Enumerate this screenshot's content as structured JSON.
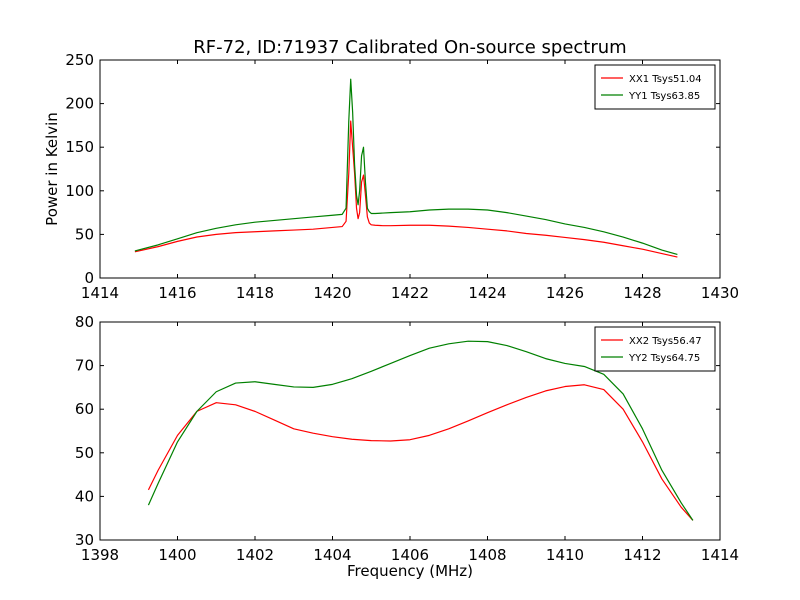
{
  "title": "RF-72, ID:71937 Calibrated On-source spectrum",
  "chart_data": [
    {
      "type": "line",
      "title": "RF-72, ID:71937 Calibrated On-source spectrum",
      "xlabel": "",
      "ylabel": "Power in Kelvin",
      "xlim": [
        1414,
        1430
      ],
      "ylim": [
        0,
        250
      ],
      "xticks": [
        1414,
        1416,
        1418,
        1420,
        1422,
        1424,
        1426,
        1428,
        1430
      ],
      "yticks": [
        0,
        50,
        100,
        150,
        200,
        250
      ],
      "grid": false,
      "legend_position": "top-right",
      "series": [
        {
          "name": "XX1 Tsys51.04",
          "color": "#ff0000",
          "x": [
            1414.9,
            1415.5,
            1416.0,
            1416.5,
            1417.0,
            1417.5,
            1418.0,
            1418.5,
            1419.0,
            1419.5,
            1420.0,
            1420.25,
            1420.35,
            1420.42,
            1420.47,
            1420.52,
            1420.57,
            1420.62,
            1420.66,
            1420.7,
            1420.75,
            1420.8,
            1420.85,
            1420.9,
            1420.95,
            1421.0,
            1421.1,
            1421.3,
            1421.5,
            1422.0,
            1422.5,
            1423.0,
            1423.5,
            1424.0,
            1424.5,
            1425.0,
            1425.5,
            1426.0,
            1426.5,
            1427.0,
            1427.5,
            1428.0,
            1428.5,
            1428.9
          ],
          "y": [
            30,
            36,
            42,
            47,
            50,
            52,
            53,
            54,
            55,
            56,
            58,
            59,
            65,
            120,
            180,
            150,
            120,
            80,
            68,
            75,
            110,
            118,
            95,
            70,
            63,
            61,
            60.5,
            60,
            60,
            60.5,
            60.5,
            59.5,
            58,
            56,
            54,
            51,
            49,
            46.5,
            44,
            41,
            37,
            33,
            28,
            24
          ]
        },
        {
          "name": "YY1 Tsys63.85",
          "color": "#008000",
          "x": [
            1414.9,
            1415.5,
            1416.0,
            1416.5,
            1417.0,
            1417.5,
            1418.0,
            1418.5,
            1419.0,
            1419.5,
            1420.0,
            1420.25,
            1420.35,
            1420.42,
            1420.47,
            1420.52,
            1420.57,
            1420.62,
            1420.66,
            1420.7,
            1420.75,
            1420.8,
            1420.85,
            1420.9,
            1420.95,
            1421.0,
            1421.1,
            1421.3,
            1421.5,
            1422.0,
            1422.5,
            1423.0,
            1423.5,
            1424.0,
            1424.5,
            1425.0,
            1425.5,
            1426.0,
            1426.5,
            1427.0,
            1427.5,
            1428.0,
            1428.5,
            1428.9
          ],
          "y": [
            31,
            38,
            45,
            52,
            57,
            61,
            64,
            66,
            68,
            70,
            72,
            73,
            80,
            180,
            228,
            190,
            130,
            95,
            84,
            100,
            140,
            150,
            110,
            80,
            76,
            74,
            74,
            74.5,
            75,
            76,
            78,
            79,
            79,
            78,
            75,
            71,
            67,
            62,
            58,
            53,
            47,
            40,
            32,
            27
          ]
        }
      ]
    },
    {
      "type": "line",
      "title": "",
      "xlabel": "Frequency (MHz)",
      "ylabel": "",
      "xlim": [
        1398,
        1414
      ],
      "ylim": [
        30,
        80
      ],
      "xticks": [
        1398,
        1400,
        1402,
        1404,
        1406,
        1408,
        1410,
        1412,
        1414
      ],
      "yticks": [
        30,
        40,
        50,
        60,
        70,
        80
      ],
      "grid": false,
      "legend_position": "top-right",
      "series": [
        {
          "name": "XX2 Tsys56.47",
          "color": "#ff0000",
          "x": [
            1399.25,
            1399.5,
            1400.0,
            1400.5,
            1401.0,
            1401.5,
            1402.0,
            1402.5,
            1403.0,
            1403.5,
            1404.0,
            1404.5,
            1405.0,
            1405.5,
            1406.0,
            1406.5,
            1407.0,
            1407.5,
            1408.0,
            1408.5,
            1409.0,
            1409.5,
            1410.0,
            1410.5,
            1411.0,
            1411.5,
            1412.0,
            1412.5,
            1413.0,
            1413.3
          ],
          "y": [
            41.5,
            46,
            54,
            59.5,
            61.5,
            61,
            59.5,
            57.5,
            55.5,
            54.5,
            53.7,
            53.1,
            52.8,
            52.7,
            53.0,
            54.0,
            55.5,
            57.3,
            59.2,
            61.0,
            62.7,
            64.2,
            65.2,
            65.6,
            64.5,
            60.0,
            52.5,
            44.0,
            37.5,
            34.5
          ]
        },
        {
          "name": "YY2 Tsys64.75",
          "color": "#008000",
          "x": [
            1399.25,
            1399.5,
            1400.0,
            1400.5,
            1401.0,
            1401.5,
            1402.0,
            1402.5,
            1403.0,
            1403.5,
            1404.0,
            1404.5,
            1405.0,
            1405.5,
            1406.0,
            1406.5,
            1407.0,
            1407.5,
            1408.0,
            1408.5,
            1409.0,
            1409.5,
            1410.0,
            1410.5,
            1411.0,
            1411.5,
            1412.0,
            1412.5,
            1413.0,
            1413.3
          ],
          "y": [
            38,
            43,
            52.5,
            59.5,
            64,
            66,
            66.3,
            65.7,
            65.1,
            65,
            65.7,
            67,
            68.7,
            70.5,
            72.3,
            74.0,
            75.0,
            75.6,
            75.5,
            74.6,
            73.2,
            71.6,
            70.5,
            69.8,
            68.0,
            63.5,
            55.5,
            46.0,
            38.5,
            34.5
          ]
        }
      ]
    }
  ]
}
